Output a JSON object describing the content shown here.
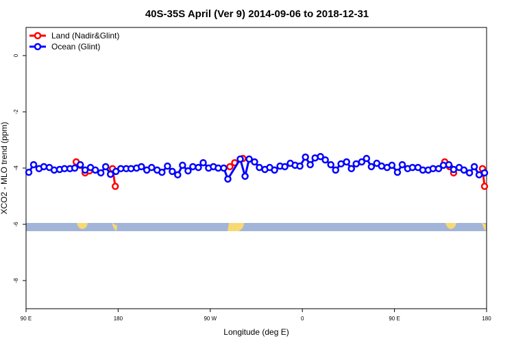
{
  "chart_data": {
    "type": "line",
    "title": "40S-35S April (Ver 9)   2014-09-06 to 2018-12-31",
    "x_label": "Longitude (deg E)",
    "y_label": "XCO2 - MLO trend (ppm)",
    "xlim": [
      90,
      540
    ],
    "xticks": [
      {
        "value": 90,
        "label": "90 E"
      },
      {
        "value": 180,
        "label": "180"
      },
      {
        "value": 270,
        "label": "90 W"
      },
      {
        "value": 360,
        "label": "0"
      },
      {
        "value": 450,
        "label": "90 E"
      },
      {
        "value": 540,
        "label": "180"
      }
    ],
    "ylim": [
      -9,
      1
    ],
    "yticks": [
      0,
      -2,
      -4,
      -6,
      -8
    ],
    "legend": "top-left",
    "series": [
      {
        "name": "Land (Nadir&Glint)",
        "color": "#ff0000",
        "x": [
          139,
          143,
          147.7,
          152,
          160,
          174.5,
          177.2,
          230,
          289.2,
          293.9,
          301.9,
          400,
          499.1,
          503.8,
          507.8,
          520,
          536,
          538
        ],
        "values": [
          -3.78,
          -3.9,
          -4.17,
          -4.1,
          null,
          -4.02,
          -4.65,
          null,
          -3.95,
          -3.81,
          -3.66,
          null,
          -3.78,
          -3.95,
          -4.17,
          null,
          -4.02,
          -4.65
        ]
      },
      {
        "name": "Ocean (Glint)",
        "color": "#0000ff",
        "x": [
          92.7,
          97.4,
          102.7,
          107.4,
          112.8,
          117.5,
          122.8,
          127.6,
          132.9,
          137.6,
          143.0,
          147.7,
          153.0,
          157.7,
          163.1,
          167.8,
          172.5,
          177.8,
          182.6,
          187.9,
          192.6,
          198.0,
          202.7,
          208.0,
          212.7,
          218.1,
          222.8,
          228.2,
          232.9,
          238.2,
          242.9,
          248.3,
          253.0,
          258.4,
          263.1,
          268.4,
          273.1,
          277.8,
          283.2,
          287.2,
          299.3,
          304.0,
          308.0,
          313.3,
          318.0,
          323.4,
          328.1,
          332.8,
          338.2,
          342.9,
          348.2,
          352.9,
          357.6,
          363.0,
          367.7,
          372.4,
          377.7,
          382.4,
          387.8,
          392.5,
          397.8,
          403.2,
          407.9,
          412.6,
          418.0,
          422.7,
          427.4,
          432.7,
          437.4,
          442.8,
          447.5,
          452.9,
          457.6,
          462.9,
          467.6,
          473.0,
          477.7,
          483.0,
          487.7,
          493.1,
          497.8,
          503.1,
          507.8,
          513.2,
          517.9,
          523.3,
          528.0,
          532.7,
          538.0
        ],
        "values": [
          -4.15,
          -3.88,
          -4.02,
          -3.95,
          -3.98,
          -4.07,
          -4.05,
          -4.02,
          -4.02,
          -4.0,
          -3.88,
          -4.07,
          -3.98,
          -4.07,
          -4.17,
          -3.95,
          -4.22,
          -4.12,
          -4.02,
          -4.02,
          -4.02,
          -4.0,
          -3.95,
          -4.07,
          -3.98,
          -4.07,
          -4.15,
          -3.93,
          -4.12,
          -4.24,
          -3.9,
          -4.1,
          -3.95,
          -3.98,
          -3.81,
          -4.0,
          -3.95,
          -4.0,
          -4.0,
          -4.39,
          -3.68,
          -4.29,
          -3.68,
          -3.78,
          -3.98,
          -4.05,
          -3.98,
          -4.07,
          -3.93,
          -3.95,
          -3.83,
          -3.9,
          -3.93,
          -3.61,
          -3.88,
          -3.64,
          -3.59,
          -3.71,
          -3.88,
          -4.07,
          -3.85,
          -3.78,
          -4.02,
          -3.85,
          -3.78,
          -3.66,
          -3.95,
          -3.83,
          -3.93,
          -3.98,
          -3.9,
          -4.15,
          -3.88,
          -4.02,
          -3.98,
          -3.98,
          -4.07,
          -4.07,
          -4.02,
          -4.02,
          -3.9,
          -3.88,
          -4.05,
          -3.98,
          -4.07,
          -4.17,
          -3.95,
          -4.24,
          -4.17
        ]
      }
    ]
  }
}
